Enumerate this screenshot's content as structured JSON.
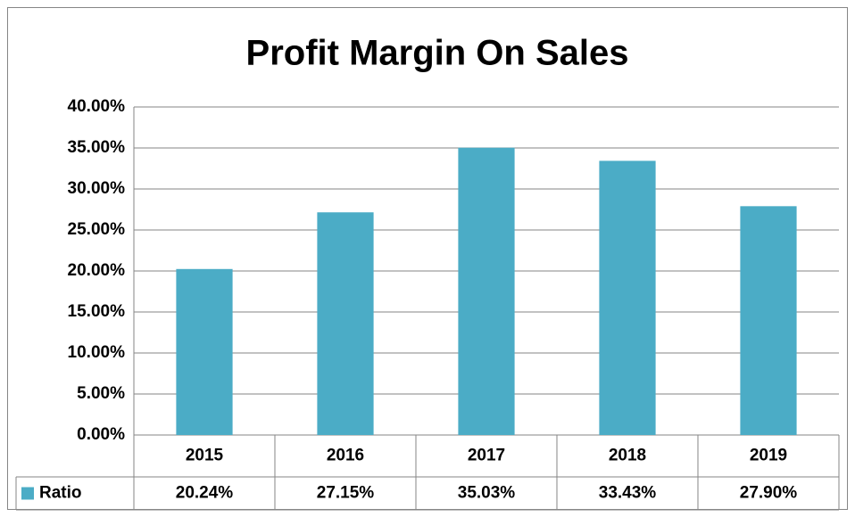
{
  "chart_data": {
    "type": "bar",
    "title": "Profit Margin On Sales",
    "categories": [
      "2015",
      "2016",
      "2017",
      "2018",
      "2019"
    ],
    "series": [
      {
        "name": "Ratio",
        "color": "#4bacc6",
        "values": [
          20.24,
          27.15,
          35.03,
          33.43,
          27.9
        ],
        "value_labels": [
          "20.24%",
          "27.15%",
          "35.03%",
          "33.43%",
          "27.90%"
        ]
      }
    ],
    "ylim": [
      0,
      40
    ],
    "yticks": [
      {
        "value": 0,
        "label": "0.00%"
      },
      {
        "value": 5,
        "label": "5.00%"
      },
      {
        "value": 10,
        "label": "10.00%"
      },
      {
        "value": 15,
        "label": "15.00%"
      },
      {
        "value": 20,
        "label": "20.00%"
      },
      {
        "value": 25,
        "label": "25.00%"
      },
      {
        "value": 30,
        "label": "30.00%"
      },
      {
        "value": 35,
        "label": "35.00%"
      },
      {
        "value": 40,
        "label": "40.00%"
      }
    ],
    "grid": true,
    "legend": "data-table"
  }
}
